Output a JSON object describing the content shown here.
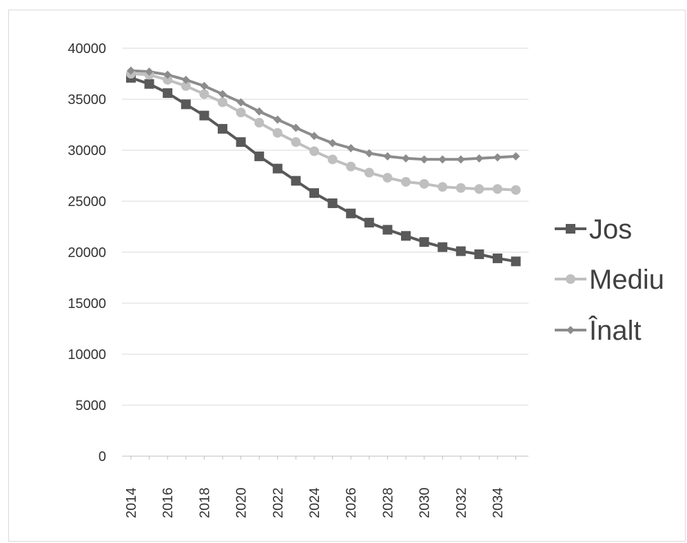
{
  "chart_data": {
    "type": "line",
    "title": "",
    "xlabel": "",
    "ylabel": "",
    "x": [
      2014,
      2015,
      2016,
      2017,
      2018,
      2019,
      2020,
      2021,
      2022,
      2023,
      2024,
      2025,
      2026,
      2027,
      2028,
      2029,
      2030,
      2031,
      2032,
      2033,
      2034,
      2035
    ],
    "x_tick_labels": [
      "2014",
      "2016",
      "2018",
      "2020",
      "2022",
      "2024",
      "2026",
      "2028",
      "2030",
      "2032",
      "2034"
    ],
    "y_tick_labels": [
      "0",
      "5000",
      "10000",
      "15000",
      "20000",
      "25000",
      "30000",
      "35000",
      "40000"
    ],
    "ylim": [
      0,
      40000
    ],
    "grid": "horizontal",
    "legend_position": "right",
    "series": [
      {
        "name": "Jos",
        "marker": "square",
        "color": "#595959",
        "values": [
          37100,
          36500,
          35600,
          34500,
          33400,
          32100,
          30800,
          29400,
          28200,
          27000,
          25800,
          24800,
          23800,
          22900,
          22200,
          21600,
          21000,
          20500,
          20100,
          19800,
          19400,
          19100
        ]
      },
      {
        "name": "Mediu",
        "marker": "circle",
        "color": "#bfbfbf",
        "values": [
          37500,
          37400,
          36900,
          36300,
          35500,
          34700,
          33700,
          32700,
          31700,
          30800,
          29900,
          29100,
          28400,
          27800,
          27300,
          26900,
          26700,
          26400,
          26300,
          26200,
          26200,
          26100
        ]
      },
      {
        "name": "Înalt",
        "marker": "diamond",
        "color": "#8c8c8c",
        "values": [
          37800,
          37700,
          37400,
          36900,
          36300,
          35500,
          34700,
          33800,
          33000,
          32200,
          31400,
          30700,
          30200,
          29700,
          29400,
          29200,
          29100,
          29100,
          29100,
          29200,
          29300,
          29400
        ]
      }
    ]
  }
}
